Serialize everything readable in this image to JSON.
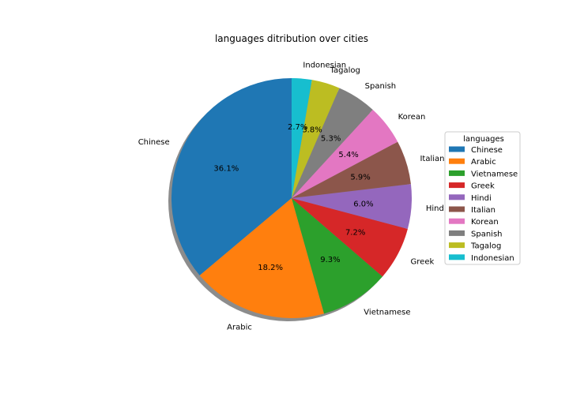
{
  "chart_data": {
    "type": "pie",
    "title": "languages ditribution over cities",
    "categories": [
      "Chinese",
      "Arabic",
      "Vietnamese",
      "Greek",
      "Hindi",
      "Italian",
      "Korean",
      "Spanish",
      "Tagalog",
      "Indonesian"
    ],
    "values": [
      36.1,
      18.2,
      9.3,
      7.2,
      6.0,
      5.9,
      5.4,
      5.3,
      3.8,
      2.7
    ],
    "pct_labels": [
      "36.1%",
      "18.2%",
      "9.3%",
      "7.2%",
      "6.0%",
      "5.9%",
      "5.4%",
      "5.3%",
      "3.8%",
      "2.7%"
    ],
    "colors": [
      "#1f77b4",
      "#ff7f0e",
      "#2ca02c",
      "#d62728",
      "#9467bd",
      "#8c564b",
      "#e377c2",
      "#7f7f7f",
      "#bcbd22",
      "#17becf"
    ],
    "start_angle_deg": 90,
    "direction": "counterclockwise",
    "shadow": true,
    "legend": {
      "title": "languages",
      "placement": "right",
      "entries": [
        "Chinese",
        "Arabic",
        "Vietnamese",
        "Greek",
        "Hindi",
        "Italian",
        "Korean",
        "Spanish",
        "Tagalog",
        "Indonesian"
      ]
    }
  }
}
